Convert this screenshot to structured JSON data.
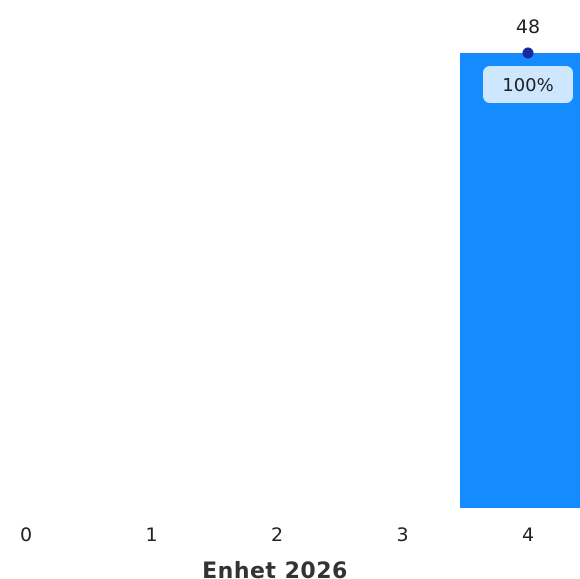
{
  "chart_data": {
    "type": "bar",
    "xlabel": "Enhet 2026",
    "x_ticks": [
      "0",
      "1",
      "2",
      "3",
      "4"
    ],
    "bars": [
      {
        "x": 4,
        "value": 48,
        "value_label": "48",
        "percent_label": "100%"
      }
    ],
    "ylim": [
      0,
      48
    ],
    "grid": false,
    "legend": "none",
    "colors": {
      "bar": "#148cff",
      "marker": "#1a2a9c",
      "label_bg": "#cfe6ff",
      "text": "#222222"
    }
  }
}
